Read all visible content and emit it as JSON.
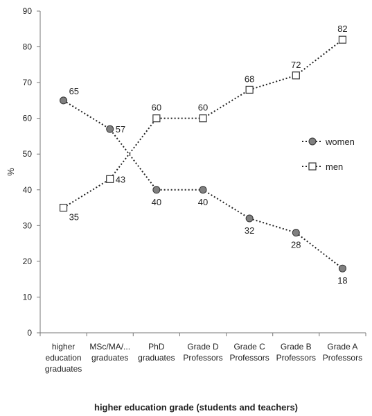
{
  "chart_data": {
    "type": "line",
    "title": "",
    "xlabel": "higher education grade (students and teachers)",
    "ylabel": "%",
    "ylim": [
      0,
      90
    ],
    "yticks": [
      0,
      10,
      20,
      30,
      40,
      50,
      60,
      70,
      80,
      90
    ],
    "grid": false,
    "legend_position": "right",
    "categories": [
      [
        "higher",
        "education",
        "graduates"
      ],
      [
        "MSc/MA/...",
        "graduates"
      ],
      [
        "PhD",
        "graduates"
      ],
      [
        "Grade D",
        "Professors"
      ],
      [
        "Grade C",
        "Professors"
      ],
      [
        "Grade B",
        "Professors"
      ],
      [
        "Grade A",
        "Professors"
      ]
    ],
    "series": [
      {
        "name": "women",
        "marker": "circle",
        "color": "#808080",
        "values": [
          65,
          57,
          40,
          40,
          32,
          28,
          18
        ],
        "labels": [
          "65",
          "57",
          "40",
          "40",
          "32",
          "28",
          "18"
        ],
        "label_pos": [
          "ne",
          "e",
          "s",
          "s",
          "s",
          "s",
          "s"
        ]
      },
      {
        "name": "men",
        "marker": "square",
        "color": "#ffffff",
        "values": [
          35,
          43,
          60,
          60,
          68,
          72,
          82
        ],
        "labels": [
          "35",
          "43",
          "60",
          "60",
          "68",
          "72",
          "82"
        ],
        "label_pos": [
          "se",
          "e",
          "n",
          "n",
          "n",
          "n",
          "n"
        ]
      }
    ]
  }
}
